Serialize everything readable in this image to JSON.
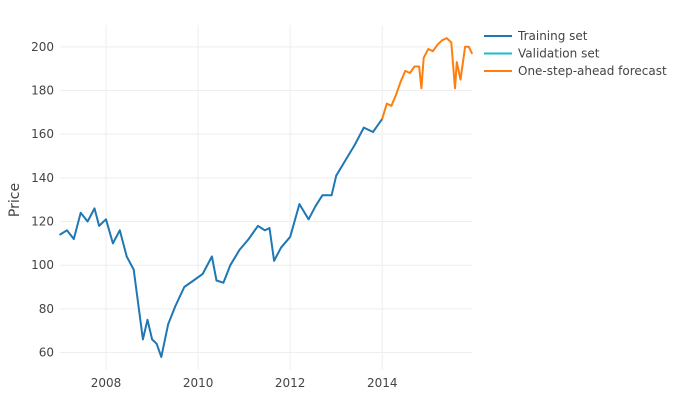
{
  "chart_data": {
    "type": "line",
    "ylabel": "Price",
    "xlabel": "",
    "xlim": [
      2007.0,
      2015.95
    ],
    "ylim": [
      52,
      210
    ],
    "xticks": [
      2008,
      2010,
      2012,
      2014
    ],
    "xtick_labels": [
      "2008",
      "2010",
      "2012",
      "2014"
    ],
    "yticks": [
      60,
      80,
      100,
      120,
      140,
      160,
      180,
      200
    ],
    "ytick_labels": [
      "60",
      "80",
      "100",
      "120",
      "140",
      "160",
      "180",
      "200"
    ],
    "grid": true,
    "legend_position": "top-right",
    "series": [
      {
        "name": "Training set",
        "color": "#1f77b4",
        "x": [
          2007.0,
          2007.15,
          2007.3,
          2007.45,
          2007.6,
          2007.75,
          2007.85,
          2008.0,
          2008.15,
          2008.3,
          2008.45,
          2008.6,
          2008.7,
          2008.8,
          2008.9,
          2009.0,
          2009.1,
          2009.2,
          2009.35,
          2009.5,
          2009.7,
          2009.9,
          2010.1,
          2010.3,
          2010.4,
          2010.55,
          2010.7,
          2010.9,
          2011.1,
          2011.3,
          2011.45,
          2011.55,
          2011.65,
          2011.8,
          2012.0,
          2012.2,
          2012.4,
          2012.55,
          2012.7,
          2012.9,
          2013.0,
          2013.2,
          2013.4,
          2013.6,
          2013.8,
          2014.0
        ],
        "values": [
          114,
          116,
          112,
          124,
          120,
          126,
          118,
          121,
          110,
          116,
          104,
          98,
          82,
          66,
          75,
          66,
          64,
          58,
          73,
          81,
          90,
          93,
          96,
          104,
          93,
          92,
          100,
          107,
          112,
          118,
          116,
          117,
          102,
          108,
          113,
          128,
          121,
          127,
          132,
          132,
          141,
          148,
          155,
          163,
          161,
          167
        ]
      },
      {
        "name": "Validation set",
        "color": "#17becf",
        "x": [],
        "values": []
      },
      {
        "name": "One-step-ahead forecast",
        "color": "#ff7f0e",
        "x": [
          2014.0,
          2014.1,
          2014.2,
          2014.3,
          2014.4,
          2014.5,
          2014.6,
          2014.7,
          2014.8,
          2014.85,
          2014.9,
          2015.0,
          2015.1,
          2015.2,
          2015.3,
          2015.4,
          2015.5,
          2015.58,
          2015.62,
          2015.7,
          2015.8,
          2015.88,
          2015.95
        ],
        "values": [
          167,
          174,
          173,
          178,
          184,
          189,
          188,
          191,
          191,
          181,
          195,
          199,
          198,
          201,
          203,
          204,
          202,
          181,
          193,
          185,
          200,
          200,
          197
        ]
      }
    ]
  }
}
